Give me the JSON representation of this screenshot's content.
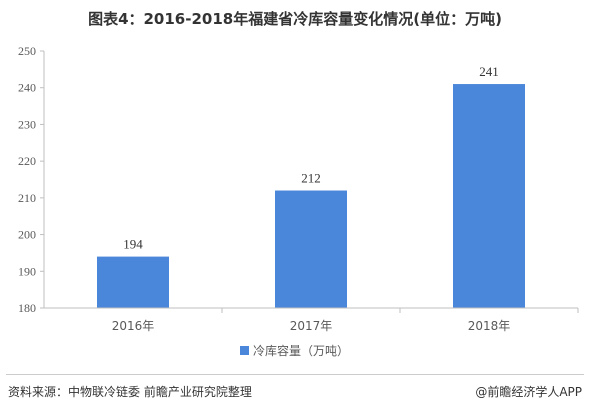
{
  "title": "图表4：2016-2018年福建省冷库容量变化情况(单位：万吨)",
  "footer": {
    "source": "资料来源：中物联冷链委 前瞻产业研究院整理",
    "brand": "@前瞻经济学人APP"
  },
  "colors": {
    "bar": "#4a86d9",
    "axis": "#bfbfbf"
  },
  "chart_data": {
    "type": "bar",
    "categories": [
      "2016年",
      "2017年",
      "2018年"
    ],
    "series": [
      {
        "name": "冷库容量（万吨）",
        "values": [
          194,
          212,
          241
        ]
      }
    ],
    "data_labels": [
      "194",
      "212",
      "241"
    ],
    "ylim": [
      180,
      250
    ],
    "yticks": [
      180,
      190,
      200,
      210,
      220,
      230,
      240,
      250
    ],
    "grid": false,
    "legend": "bottom"
  }
}
